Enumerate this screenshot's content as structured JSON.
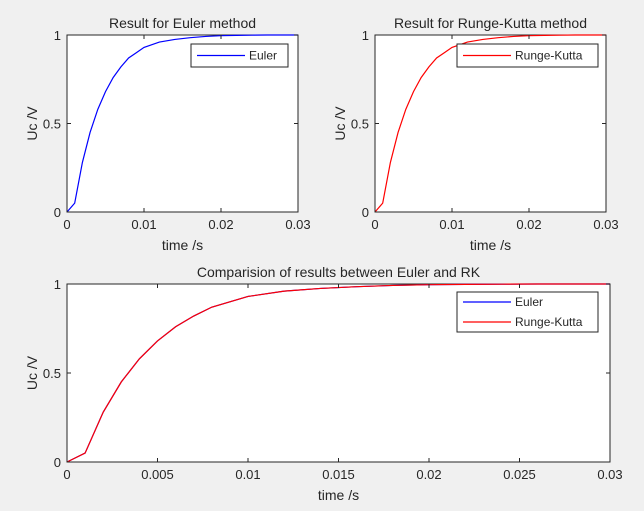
{
  "chart_data": [
    {
      "type": "line",
      "title": "Result for Euler method",
      "xlabel": "time  /s",
      "ylabel": "Uc /V",
      "xlim": [
        0,
        0.03
      ],
      "ylim": [
        0,
        1
      ],
      "xticks": [
        "0",
        "0.01",
        "0.02",
        "0.03"
      ],
      "yticks": [
        "0",
        "0.5",
        "1"
      ],
      "legend": "top-right",
      "grid": false,
      "series": [
        {
          "name": "Euler",
          "color": "#0000ff",
          "x": [
            0,
            0.001,
            0.002,
            0.003,
            0.004,
            0.005,
            0.006,
            0.007,
            0.008,
            0.009,
            0.01,
            0.012,
            0.014,
            0.016,
            0.018,
            0.02,
            0.022,
            0.024,
            0.026,
            0.028,
            0.03
          ],
          "y": [
            0,
            0.05,
            0.28,
            0.45,
            0.58,
            0.68,
            0.76,
            0.82,
            0.87,
            0.9,
            0.93,
            0.96,
            0.975,
            0.985,
            0.992,
            0.996,
            0.998,
            0.999,
            1,
            1,
            1
          ]
        }
      ]
    },
    {
      "type": "line",
      "title": "Result for Runge-Kutta method",
      "xlabel": "time  /s",
      "ylabel": "Uc /V",
      "xlim": [
        0,
        0.03
      ],
      "ylim": [
        0,
        1
      ],
      "xticks": [
        "0",
        "0.01",
        "0.02",
        "0.03"
      ],
      "yticks": [
        "0",
        "0.5",
        "1"
      ],
      "legend": "top-right",
      "grid": false,
      "series": [
        {
          "name": "Runge-Kutta",
          "color": "#ff0000",
          "x": [
            0,
            0.001,
            0.002,
            0.003,
            0.004,
            0.005,
            0.006,
            0.007,
            0.008,
            0.009,
            0.01,
            0.012,
            0.014,
            0.016,
            0.018,
            0.02,
            0.022,
            0.024,
            0.026,
            0.028,
            0.03
          ],
          "y": [
            0,
            0.05,
            0.28,
            0.45,
            0.58,
            0.68,
            0.76,
            0.82,
            0.87,
            0.9,
            0.93,
            0.96,
            0.975,
            0.985,
            0.992,
            0.996,
            0.998,
            0.999,
            1,
            1,
            1
          ]
        }
      ]
    },
    {
      "type": "line",
      "title": "Comparision of results between Euler and RK",
      "xlabel": "time  /s",
      "ylabel": "Uc /V",
      "xlim": [
        0,
        0.03
      ],
      "ylim": [
        0,
        1
      ],
      "xticks": [
        "0",
        "0.005",
        "0.01",
        "0.015",
        "0.02",
        "0.025",
        "0.03"
      ],
      "yticks": [
        "0",
        "0.5",
        "1"
      ],
      "legend": "top-right",
      "grid": false,
      "series": [
        {
          "name": "Euler",
          "color": "#0000ff",
          "x": [
            0,
            0.001,
            0.002,
            0.003,
            0.004,
            0.005,
            0.006,
            0.007,
            0.008,
            0.009,
            0.01,
            0.012,
            0.014,
            0.016,
            0.018,
            0.02,
            0.022,
            0.024,
            0.026,
            0.028,
            0.03
          ],
          "y": [
            0,
            0.05,
            0.28,
            0.45,
            0.58,
            0.68,
            0.76,
            0.82,
            0.87,
            0.9,
            0.93,
            0.96,
            0.975,
            0.985,
            0.992,
            0.996,
            0.998,
            0.999,
            1,
            1,
            1
          ]
        },
        {
          "name": "Runge-Kutta",
          "color": "#ff0000",
          "x": [
            0,
            0.001,
            0.002,
            0.003,
            0.004,
            0.005,
            0.006,
            0.007,
            0.008,
            0.009,
            0.01,
            0.012,
            0.014,
            0.016,
            0.018,
            0.02,
            0.022,
            0.024,
            0.026,
            0.028,
            0.03
          ],
          "y": [
            0,
            0.05,
            0.28,
            0.45,
            0.58,
            0.68,
            0.76,
            0.82,
            0.87,
            0.9,
            0.93,
            0.96,
            0.975,
            0.985,
            0.992,
            0.996,
            0.998,
            0.999,
            1,
            1,
            1
          ]
        }
      ]
    }
  ]
}
